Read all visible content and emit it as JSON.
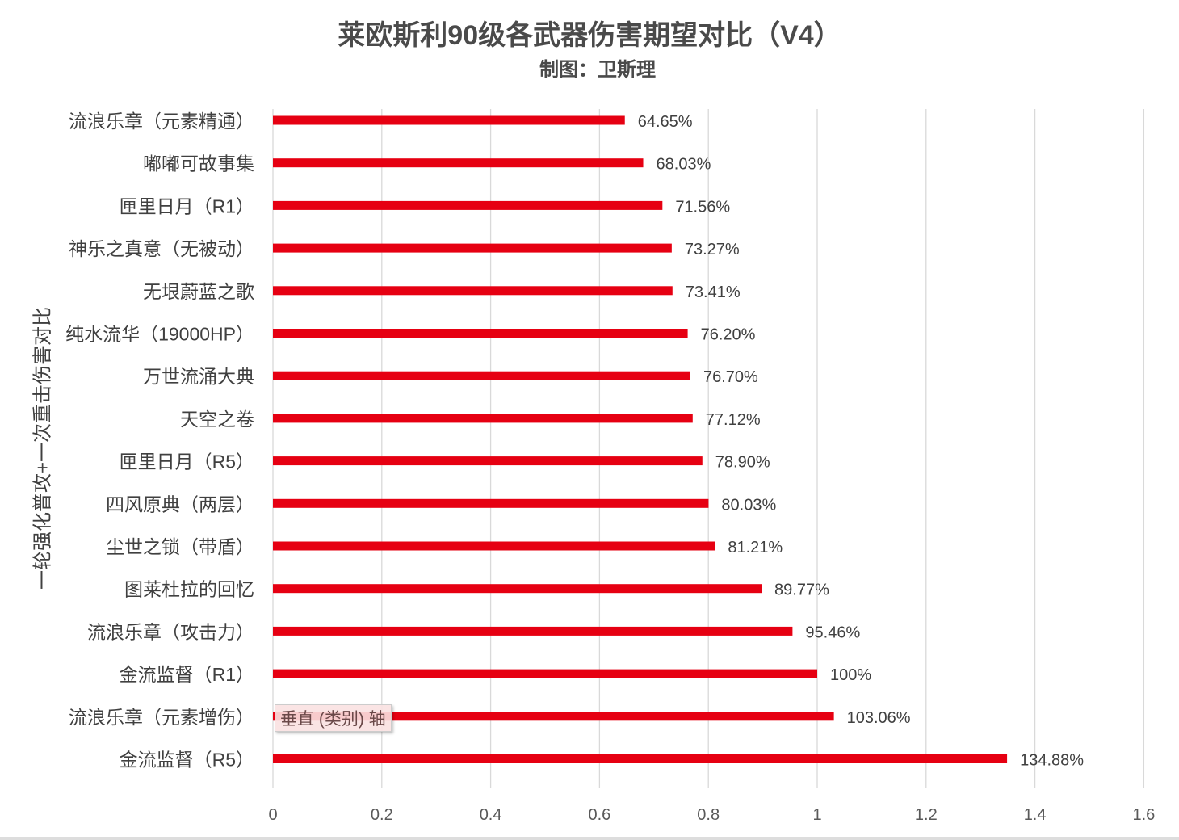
{
  "chart_data": {
    "type": "bar",
    "orientation": "horizontal",
    "title": "莱欧斯利90级各武器伤害期望对比（V4）",
    "subtitle": "制图：卫斯理",
    "ylabel": "一轮强化普攻+一次重击伤害对比",
    "xlabel": "",
    "xlim": [
      0,
      1.6
    ],
    "xticks": [
      "0",
      "0.2",
      "0.4",
      "0.6",
      "0.8",
      "1",
      "1.2",
      "1.4",
      "1.6"
    ],
    "grid": true,
    "bar_color": "#e60012",
    "categories": [
      "流浪乐章（元素精通）",
      "嘟嘟可故事集",
      "匣里日月（R1）",
      "神乐之真意（无被动）",
      "无垠蔚蓝之歌",
      "纯水流华（19000HP）",
      "万世流涌大典",
      "天空之卷",
      "匣里日月（R5）",
      "四风原典（两层）",
      "尘世之锁（带盾）",
      "图莱杜拉的回忆",
      "流浪乐章（攻击力）",
      "金流监督（R1）",
      "流浪乐章（元素增伤）",
      "金流监督（R5）"
    ],
    "values": [
      0.6465,
      0.6803,
      0.7156,
      0.7327,
      0.7341,
      0.762,
      0.767,
      0.7712,
      0.789,
      0.8003,
      0.8121,
      0.8977,
      0.9546,
      1.0,
      1.0306,
      1.3488
    ],
    "data_labels": [
      "64.65%",
      "68.03%",
      "71.56%",
      "73.27%",
      "73.41%",
      "76.20%",
      "76.70%",
      "77.12%",
      "78.90%",
      "80.03%",
      "81.21%",
      "89.77%",
      "95.46%",
      "100%",
      "103.06%",
      "134.88%"
    ]
  },
  "tooltip": "垂直 (类别) 轴"
}
